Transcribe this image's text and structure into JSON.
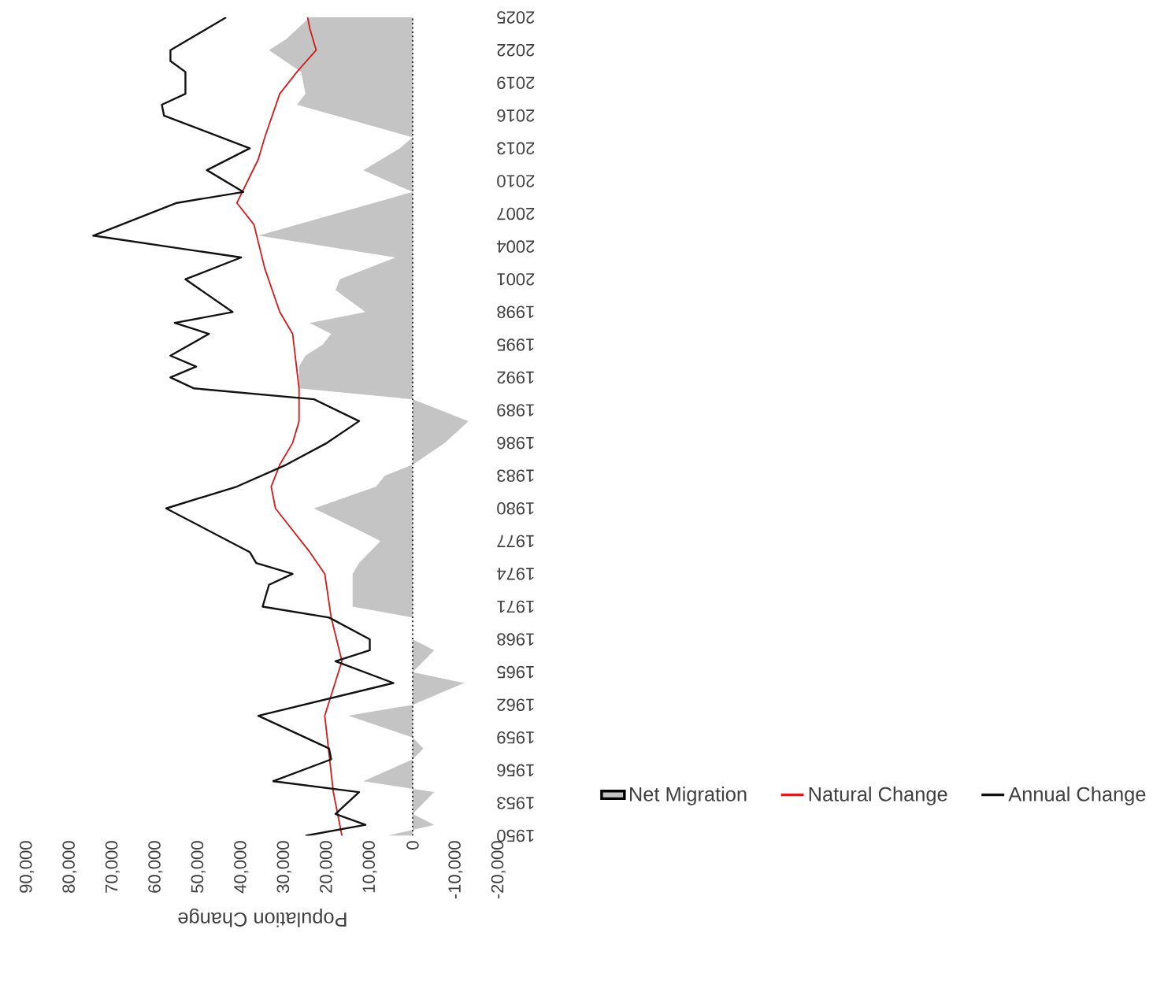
{
  "chart_data": {
    "type": "line",
    "orientation": "horizontal",
    "xlabel": "Population Change",
    "legend": "right",
    "grid": false,
    "ylim": [
      1950,
      2025
    ],
    "yticks": [
      1950,
      1953,
      1956,
      1959,
      1962,
      1965,
      1968,
      1971,
      1974,
      1977,
      1980,
      1983,
      1986,
      1989,
      1992,
      1995,
      1998,
      2001,
      2004,
      2007,
      2010,
      2013,
      2016,
      2019,
      2022,
      2025
    ],
    "xlim": [
      90000,
      -20000
    ],
    "xticks": [
      {
        "value": 90000,
        "label": "90,000"
      },
      {
        "value": 80000,
        "label": "80,000"
      },
      {
        "value": 70000,
        "label": "70,000"
      },
      {
        "value": 60000,
        "label": "60,000"
      },
      {
        "value": 50000,
        "label": "50,000"
      },
      {
        "value": 40000,
        "label": "40,000"
      },
      {
        "value": 30000,
        "label": "30,000"
      },
      {
        "value": 20000,
        "label": "20,000"
      },
      {
        "value": 10000,
        "label": "10,000"
      },
      0,
      {
        "value": -10000,
        "label": "-10,000"
      },
      {
        "value": -20000,
        "label": "-20,000"
      }
    ],
    "ref_lines": [
      {
        "axis": "x",
        "value": 0,
        "color": "#333333",
        "line_style": "dotted"
      }
    ],
    "series": [
      {
        "name": "Net Migration",
        "type": "area",
        "color": "#c4c4c4",
        "x": [
          1950,
          1951,
          1952,
          1954,
          1955,
          1957,
          1958,
          1959,
          1961,
          1962,
          1964,
          1965,
          1967,
          1968,
          1970,
          1971,
          1974,
          1975,
          1977,
          1978,
          1980,
          1982,
          1983,
          1984,
          1986,
          1988,
          1990,
          1991,
          1993,
          1994,
          1995,
          1996,
          1997,
          1998,
          2000,
          2001,
          2003,
          2005,
          2009,
          2011,
          2013,
          2014,
          2017,
          2018,
          2020,
          2022,
          2023,
          2025
        ],
        "values": [
          6000,
          -5000,
          0,
          -5000,
          11500,
          0,
          -2500,
          0,
          15000,
          0,
          -12000,
          0,
          -5000,
          0,
          0,
          14000,
          14000,
          12500,
          7500,
          12500,
          23000,
          8500,
          6500,
          0,
          -7500,
          -13000,
          0,
          26500,
          26500,
          25000,
          21000,
          19000,
          24000,
          11000,
          18000,
          17000,
          4000,
          36000,
          0,
          11500,
          3000,
          0,
          27000,
          25000,
          26000,
          33500,
          29500,
          24000
        ]
      },
      {
        "name": "Natural Change",
        "color": "#d02020",
        "x": [
          1950,
          1954,
          1961,
          1966,
          1970,
          1974,
          1976,
          1980,
          1982,
          1984,
          1986,
          1988,
          1991,
          1996,
          1998,
          2002,
          2006,
          2008,
          2012,
          2014,
          2018,
          2020,
          2022,
          2024,
          2025
        ],
        "values": [
          16500,
          18500,
          20500,
          16500,
          19000,
          20500,
          24000,
          32000,
          33000,
          31000,
          28000,
          26500,
          26500,
          28000,
          31000,
          34500,
          37000,
          41000,
          36000,
          34500,
          31000,
          27000,
          22500,
          24000,
          24500
        ]
      },
      {
        "name": "Annual Change",
        "color": "#111111",
        "x": [
          1950,
          1951,
          1952,
          1954,
          1955,
          1957,
          1958,
          1961,
          1964,
          1966,
          1967,
          1968,
          1970,
          1971,
          1973,
          1974,
          1975,
          1976,
          1980,
          1982,
          1984,
          1986,
          1988,
          1990,
          1991,
          1992,
          1993,
          1994,
          1996,
          1997,
          1998,
          2001,
          2003,
          2005,
          2008,
          2009,
          2011,
          2013,
          2016,
          2017,
          2018,
          2020,
          2021,
          2022,
          2025
        ],
        "values": [
          25000,
          11000,
          18000,
          12500,
          32500,
          19000,
          19500,
          36000,
          4500,
          18000,
          10000,
          10000,
          19500,
          35000,
          33500,
          28000,
          36500,
          38000,
          57500,
          41000,
          29500,
          20000,
          12500,
          23000,
          51000,
          56500,
          50500,
          56500,
          47500,
          55500,
          42000,
          53000,
          40000,
          74500,
          55000,
          39500,
          48000,
          38000,
          58000,
          58500,
          53000,
          53000,
          56500,
          56500,
          43500
        ]
      }
    ]
  }
}
